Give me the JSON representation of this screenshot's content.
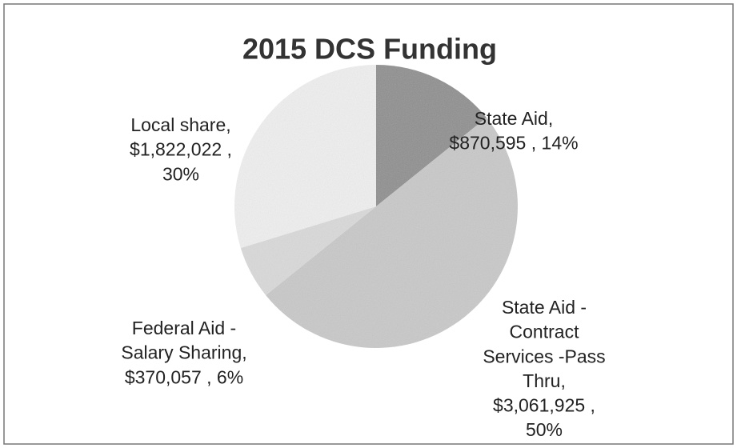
{
  "chart_data": {
    "type": "pie",
    "title": "2015 DCS Funding",
    "slices": [
      {
        "label_lines": [
          "State Aid,",
          "$870,595 , 14%"
        ],
        "value": 870595,
        "color": "#8e8e8e"
      },
      {
        "label_lines": [
          "State Aid -",
          "Contract",
          "Services -Pass",
          "Thru,",
          "$3,061,925 ,",
          "50%"
        ],
        "value": 3061925,
        "color": "#c9c9c9"
      },
      {
        "label_lines": [
          "Federal Aid -",
          "Salary Sharing,",
          "$370,057 , 6%"
        ],
        "value": 370057,
        "color": "#dadada"
      },
      {
        "label_lines": [
          "Local share,",
          "$1,822,022 ,",
          "30%"
        ],
        "value": 1822022,
        "color": "#f0f0f0"
      }
    ]
  }
}
